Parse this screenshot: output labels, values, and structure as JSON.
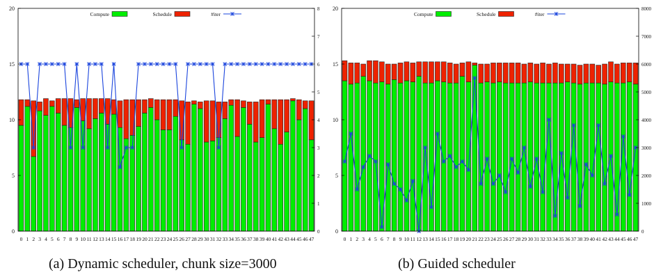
{
  "captions": {
    "a": "(a) Dynamic scheduler, chunk size=3000",
    "b": "(b) Guided scheduler"
  },
  "colors": {
    "compute": "#00ee00",
    "schedule": "#ee2200",
    "iter": "#1a44dd",
    "bar_stroke": "#222222"
  },
  "chart_data": [
    {
      "type": "bar",
      "stacked": true,
      "legend_position": "top-center",
      "grid": false,
      "categories": [
        "0",
        "1",
        "2",
        "3",
        "4",
        "5",
        "6",
        "7",
        "8",
        "9",
        "10",
        "11",
        "12",
        "13",
        "14",
        "15",
        "16",
        "17",
        "18",
        "19",
        "20",
        "21",
        "22",
        "23",
        "24",
        "25",
        "26",
        "27",
        "28",
        "29",
        "30",
        "31",
        "32",
        "33",
        "34",
        "35",
        "36",
        "37",
        "38",
        "39",
        "40",
        "41",
        "42",
        "43",
        "44",
        "45",
        "46",
        "47"
      ],
      "ylim": [
        0,
        20
      ],
      "yticks": [
        0,
        5,
        10,
        15,
        20
      ],
      "y2lim": [
        0,
        8
      ],
      "y2ticks": [
        0,
        1,
        2,
        3,
        4,
        5,
        6,
        7,
        8
      ],
      "series": [
        {
          "name": "Compute",
          "kind": "bar",
          "values": [
            9.5,
            11.2,
            6.7,
            10.8,
            10.4,
            11.2,
            10.6,
            9.5,
            9.3,
            11.1,
            9.9,
            9.2,
            10.1,
            10.6,
            9.6,
            10.5,
            9.3,
            8.3,
            8.6,
            9.4,
            10.6,
            11.1,
            10.0,
            9.1,
            9.1,
            10.3,
            8.2,
            7.8,
            11.4,
            11.0,
            8.0,
            8.1,
            8.4,
            10.1,
            11.3,
            8.5,
            11.1,
            9.6,
            8.0,
            8.4,
            11.4,
            9.2,
            7.8,
            8.9,
            11.7,
            10.0,
            11.0,
            8.2
          ]
        },
        {
          "name": "Schedule",
          "kind": "bar",
          "values": [
            2.3,
            0.6,
            5.0,
            0.8,
            1.5,
            0.5,
            1.3,
            2.4,
            2.6,
            0.7,
            2.0,
            2.7,
            1.8,
            1.3,
            2.3,
            1.3,
            2.4,
            3.5,
            3.2,
            2.4,
            1.2,
            0.8,
            1.8,
            2.7,
            2.7,
            1.5,
            3.5,
            3.8,
            0.3,
            0.6,
            3.7,
            3.6,
            3.2,
            1.5,
            0.5,
            3.3,
            0.6,
            2.0,
            3.6,
            3.4,
            0.4,
            2.6,
            4.0,
            2.9,
            0.2,
            1.8,
            0.7,
            3.5
          ]
        },
        {
          "name": "#iter",
          "kind": "line",
          "values": [
            6,
            6,
            3,
            6,
            6,
            6,
            6,
            6,
            3,
            6,
            3,
            6,
            6,
            6,
            3,
            6,
            2.3,
            3,
            3,
            6,
            6,
            6,
            6,
            6,
            6,
            6,
            3,
            6,
            6,
            6,
            6,
            6,
            3,
            6,
            6,
            6,
            6,
            6,
            6,
            6,
            6,
            6,
            6,
            6,
            6,
            6,
            6,
            6
          ]
        }
      ]
    },
    {
      "type": "bar",
      "stacked": true,
      "legend_position": "top-center",
      "grid": false,
      "categories": [
        "0",
        "1",
        "2",
        "3",
        "4",
        "5",
        "6",
        "7",
        "8",
        "9",
        "10",
        "11",
        "12",
        "13",
        "14",
        "15",
        "16",
        "17",
        "18",
        "19",
        "20",
        "21",
        "22",
        "23",
        "24",
        "25",
        "26",
        "27",
        "28",
        "29",
        "30",
        "31",
        "32",
        "33",
        "34",
        "35",
        "36",
        "37",
        "38",
        "39",
        "40",
        "41",
        "42",
        "43",
        "44",
        "45",
        "46",
        "47"
      ],
      "ylim": [
        0,
        20
      ],
      "yticks": [
        0,
        5,
        10,
        15,
        20
      ],
      "y2lim": [
        0,
        8000
      ],
      "y2ticks": [
        0,
        1000,
        2000,
        3000,
        4000,
        5000,
        6000,
        7000,
        8000
      ],
      "series": [
        {
          "name": "Compute",
          "kind": "bar",
          "values": [
            13.5,
            13.2,
            13.3,
            13.9,
            13.5,
            13.3,
            13.4,
            13.2,
            13.6,
            13.3,
            13.5,
            13.4,
            13.9,
            13.3,
            13.3,
            13.5,
            13.4,
            13.3,
            13.3,
            13.9,
            13.4,
            14.9,
            13.3,
            13.4,
            13.3,
            13.4,
            13.3,
            13.3,
            13.3,
            13.3,
            13.4,
            13.3,
            13.3,
            13.3,
            13.3,
            13.3,
            13.4,
            13.3,
            13.2,
            13.3,
            13.3,
            13.3,
            13.2,
            13.4,
            13.3,
            13.3,
            13.4,
            13.2
          ]
        },
        {
          "name": "Schedule",
          "kind": "bar",
          "values": [
            1.8,
            1.9,
            1.8,
            1.1,
            1.8,
            2.0,
            1.8,
            1.8,
            1.4,
            1.8,
            1.7,
            1.7,
            1.3,
            1.9,
            1.9,
            1.7,
            1.8,
            1.8,
            1.7,
            1.2,
            1.8,
            0.2,
            1.7,
            1.6,
            1.8,
            1.7,
            1.8,
            1.8,
            1.8,
            1.7,
            1.7,
            1.7,
            1.8,
            1.7,
            1.8,
            1.7,
            1.6,
            1.7,
            1.7,
            1.7,
            1.7,
            1.6,
            1.8,
            1.8,
            1.7,
            1.8,
            1.7,
            1.9
          ]
        },
        {
          "name": "#iter",
          "kind": "line",
          "values": [
            2500,
            3500,
            1500,
            2300,
            2700,
            2500,
            150,
            2400,
            1700,
            1500,
            1100,
            1800,
            0,
            3000,
            860,
            3500,
            2500,
            2700,
            2300,
            2500,
            2200,
            5500,
            1700,
            2600,
            1700,
            2000,
            1400,
            2600,
            2100,
            3000,
            1600,
            2600,
            1400,
            4000,
            550,
            2800,
            1200,
            3800,
            900,
            2400,
            2000,
            3800,
            1700,
            2700,
            600,
            3400,
            1300,
            3000
          ]
        }
      ]
    }
  ]
}
